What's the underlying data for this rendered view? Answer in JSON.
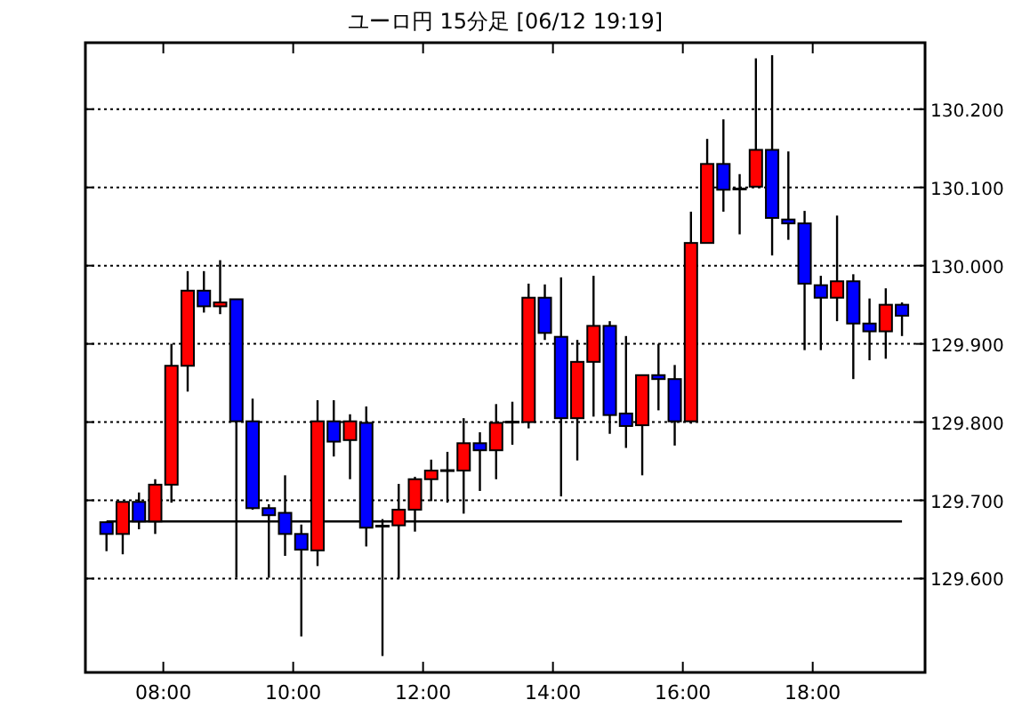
{
  "chart_data": {
    "type": "candlestick",
    "title": "ユーロ円 15分足 [06/12 19:19]",
    "x": [
      7.125,
      7.375,
      7.625,
      7.875,
      8.125,
      8.375,
      8.625,
      8.875,
      9.125,
      9.375,
      9.625,
      9.875,
      10.125,
      10.375,
      10.625,
      10.875,
      11.125,
      11.375,
      11.625,
      11.875,
      12.125,
      12.375,
      12.625,
      12.875,
      13.125,
      13.375,
      13.625,
      13.875,
      14.125,
      14.375,
      14.625,
      14.875,
      15.125,
      15.375,
      15.625,
      15.875,
      16.125,
      16.375,
      16.625,
      16.875,
      17.125,
      17.375,
      17.625,
      17.875,
      18.125,
      18.375,
      18.625,
      18.875,
      19.125,
      19.375
    ],
    "ohlc": [
      [
        129.672,
        129.673,
        129.635,
        129.657
      ],
      [
        129.657,
        129.698,
        129.631,
        129.698
      ],
      [
        129.698,
        129.71,
        129.663,
        129.673
      ],
      [
        129.673,
        129.727,
        129.657,
        129.72
      ],
      [
        129.72,
        129.9,
        129.697,
        129.872
      ],
      [
        129.872,
        129.993,
        129.839,
        129.968
      ],
      [
        129.968,
        129.993,
        129.94,
        129.948
      ],
      [
        129.948,
        130.007,
        129.938,
        129.953
      ],
      [
        129.957,
        129.957,
        129.601,
        129.801
      ],
      [
        129.801,
        129.83,
        129.688,
        129.69
      ],
      [
        129.69,
        129.695,
        129.601,
        129.681
      ],
      [
        129.684,
        129.732,
        129.629,
        129.657
      ],
      [
        129.657,
        129.669,
        129.526,
        129.637
      ],
      [
        129.636,
        129.828,
        129.616,
        129.801
      ],
      [
        129.801,
        129.828,
        129.756,
        129.775
      ],
      [
        129.777,
        129.81,
        129.727,
        129.801
      ],
      [
        129.799,
        129.82,
        129.641,
        129.665
      ],
      [
        129.667,
        129.676,
        129.501,
        129.667
      ],
      [
        129.668,
        129.721,
        129.6,
        129.688
      ],
      [
        129.688,
        129.73,
        129.66,
        129.727
      ],
      [
        129.727,
        129.752,
        129.699,
        129.738
      ],
      [
        129.738,
        129.762,
        129.697,
        129.738
      ],
      [
        129.738,
        129.805,
        129.683,
        129.773
      ],
      [
        129.773,
        129.787,
        129.712,
        129.764
      ],
      [
        129.764,
        129.823,
        129.727,
        129.799
      ],
      [
        129.8,
        129.826,
        129.771,
        129.8
      ],
      [
        129.8,
        129.977,
        129.792,
        129.959
      ],
      [
        129.959,
        129.976,
        129.905,
        129.914
      ],
      [
        129.909,
        129.985,
        129.705,
        129.805
      ],
      [
        129.805,
        129.905,
        129.751,
        129.877
      ],
      [
        129.877,
        129.987,
        129.807,
        129.923
      ],
      [
        129.923,
        129.929,
        129.785,
        129.809
      ],
      [
        129.811,
        129.91,
        129.767,
        129.795
      ],
      [
        129.796,
        129.86,
        129.732,
        129.86
      ],
      [
        129.86,
        129.9,
        129.815,
        129.855
      ],
      [
        129.855,
        129.873,
        129.77,
        129.801
      ],
      [
        129.801,
        130.069,
        129.798,
        130.029
      ],
      [
        130.029,
        130.162,
        130.029,
        130.13
      ],
      [
        130.13,
        130.187,
        130.069,
        130.097
      ],
      [
        130.098,
        130.117,
        130.04,
        130.098
      ],
      [
        130.101,
        130.265,
        130.101,
        130.148
      ],
      [
        130.148,
        130.269,
        130.013,
        130.061
      ],
      [
        130.059,
        130.146,
        130.033,
        130.054
      ],
      [
        130.054,
        130.07,
        129.892,
        129.977
      ],
      [
        129.975,
        129.987,
        129.892,
        129.959
      ],
      [
        129.959,
        130.064,
        129.929,
        129.98
      ],
      [
        129.98,
        129.989,
        129.855,
        129.926
      ],
      [
        129.926,
        129.958,
        129.879,
        129.916
      ],
      [
        129.916,
        129.971,
        129.881,
        129.95
      ],
      [
        129.95,
        129.953,
        129.91,
        129.936
      ]
    ],
    "colors": [
      "#0000ff",
      "#ff0000",
      "#0000ff",
      "#ff0000",
      "#ff0000",
      "#ff0000",
      "#0000ff",
      "#ff0000",
      "#0000ff",
      "#0000ff",
      "#0000ff",
      "#0000ff",
      "#0000ff",
      "#ff0000",
      "#0000ff",
      "#ff0000",
      "#0000ff",
      "#000000",
      "#ff0000",
      "#ff0000",
      "#ff0000",
      "#000000",
      "#ff0000",
      "#0000ff",
      "#ff0000",
      "#000000",
      "#ff0000",
      "#0000ff",
      "#0000ff",
      "#ff0000",
      "#ff0000",
      "#0000ff",
      "#0000ff",
      "#ff0000",
      "#0000ff",
      "#0000ff",
      "#ff0000",
      "#ff0000",
      "#0000ff",
      "#000000",
      "#ff0000",
      "#0000ff",
      "#0000ff",
      "#0000ff",
      "#0000ff",
      "#ff0000",
      "#0000ff",
      "#0000ff",
      "#ff0000",
      "#0000ff"
    ],
    "xlim": [
      6.8,
      19.73
    ],
    "ylim": [
      129.48,
      130.285
    ],
    "xticks": [
      {
        "value": 8,
        "label": "08:00"
      },
      {
        "value": 10,
        "label": "10:00"
      },
      {
        "value": 12,
        "label": "12:00"
      },
      {
        "value": 14,
        "label": "14:00"
      },
      {
        "value": 16,
        "label": "16:00"
      },
      {
        "value": 18,
        "label": "18:00"
      }
    ],
    "yticks": [
      {
        "value": 129.6,
        "label": "129.600"
      },
      {
        "value": 129.7,
        "label": "129.700"
      },
      {
        "value": 129.8,
        "label": "129.800"
      },
      {
        "value": 129.9,
        "label": "129.900"
      },
      {
        "value": 130.0,
        "label": "130.000"
      },
      {
        "value": 130.1,
        "label": "130.100"
      },
      {
        "value": 130.2,
        "label": "130.200"
      }
    ],
    "grid": "y",
    "ref_lines": [
      {
        "axis": "y",
        "value": 129.673,
        "color": "#000000"
      }
    ]
  }
}
